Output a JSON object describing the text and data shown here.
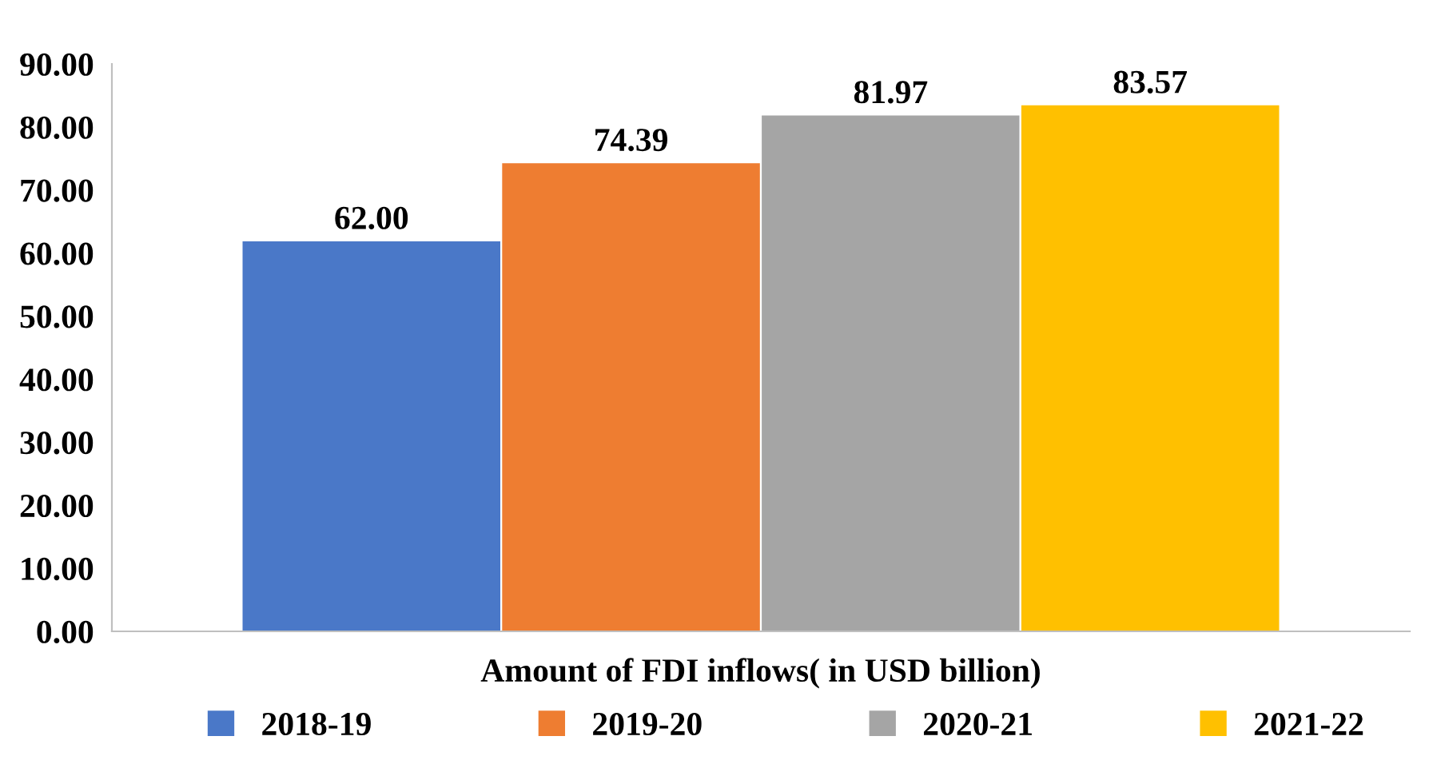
{
  "chart_data": {
    "type": "bar",
    "categories": [
      "Amount of FDI inflows( in USD billion)"
    ],
    "series": [
      {
        "name": "2018-19",
        "color": "#4a78c8",
        "values": [
          62.0
        ],
        "value_labels": [
          "62.00"
        ]
      },
      {
        "name": "2019-20",
        "color": "#ee7d31",
        "values": [
          74.39
        ],
        "value_labels": [
          "74.39"
        ]
      },
      {
        "name": "2020-21",
        "color": "#a5a5a5",
        "values": [
          81.97
        ],
        "value_labels": [
          "81.97"
        ]
      },
      {
        "name": "2021-22",
        "color": "#ffc000",
        "values": [
          83.57
        ],
        "value_labels": [
          "83.57"
        ]
      }
    ],
    "ylim": [
      0,
      90
    ],
    "yticks": [
      {
        "value": 0,
        "label": "0.00"
      },
      {
        "value": 10,
        "label": "10.00"
      },
      {
        "value": 20,
        "label": "20.00"
      },
      {
        "value": 30,
        "label": "30.00"
      },
      {
        "value": 40,
        "label": "40.00"
      },
      {
        "value": 50,
        "label": "50.00"
      },
      {
        "value": 60,
        "label": "60.00"
      },
      {
        "value": 70,
        "label": "70.00"
      },
      {
        "value": 80,
        "label": "80.00"
      },
      {
        "value": 90,
        "label": "90.00"
      }
    ],
    "grid": false,
    "legend": "bottom"
  }
}
